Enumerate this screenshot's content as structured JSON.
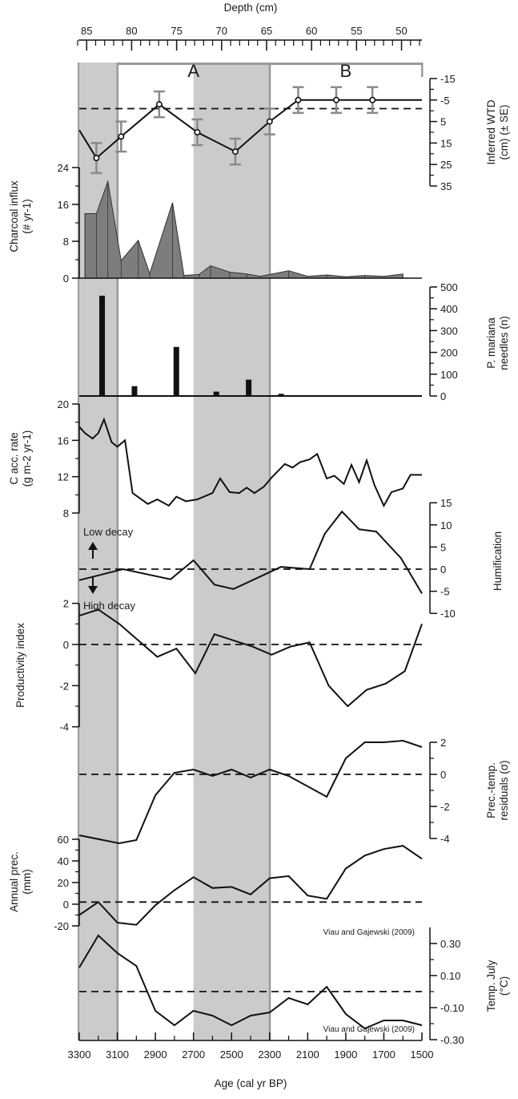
{
  "chart_data": {
    "type": "multi-panel stratigraphic line/bar chart",
    "top_axis": {
      "label": "Depth (cm)",
      "tick_labels": [
        "85",
        "80",
        "75",
        "70",
        "65",
        "60",
        "55",
        "50"
      ],
      "range": [
        86,
        48
      ]
    },
    "bottom_axis": {
      "label": "Age (cal yr BP)",
      "tick_labels": [
        "3300",
        "3100",
        "2900",
        "2700",
        "2500",
        "2300",
        "2100",
        "1900",
        "1700",
        "1500"
      ],
      "range": [
        3300,
        1500
      ]
    },
    "zones": [
      {
        "label": "A",
        "from_age": 3100,
        "to_age": 2300
      },
      {
        "label": "B",
        "from_age": 2300,
        "to_age": 1500
      }
    ],
    "shaded_intervals": [
      {
        "from_age": 3300,
        "to_age": 3100
      },
      {
        "from_age": 2700,
        "to_age": 2300
      }
    ],
    "panels": [
      {
        "id": "wtd",
        "ylabel": "Inferred WTD\n(cm) (± SE)",
        "tick_labels": [
          "-15",
          "-5",
          "5",
          "15",
          "25",
          "35"
        ],
        "ylim": [
          -15,
          35
        ],
        "inverted": true,
        "dashed_reference": -1,
        "x": [
          3300,
          3210,
          3080,
          2880,
          2680,
          2480,
          2300,
          2150,
          1950,
          1760,
          1500
        ],
        "y": [
          9,
          22,
          12,
          -3,
          10,
          19,
          5,
          -5,
          -5,
          -5,
          -5
        ],
        "errors": [
          null,
          7,
          7,
          6,
          6,
          6,
          6,
          6,
          6,
          6,
          null
        ]
      },
      {
        "id": "charcoal",
        "type": "area",
        "ylabel": "Charcoal influx\n(# yr-1)",
        "tick_labels": [
          "0",
          "8",
          "16",
          "24"
        ],
        "ylim": [
          0,
          24
        ],
        "x": [
          3270,
          3210,
          3150,
          3080,
          2990,
          2930,
          2810,
          2750,
          2670,
          2610,
          2510,
          2420,
          2350,
          2200,
          2100,
          2000,
          1900,
          1800,
          1700,
          1600
        ],
        "y": [
          14,
          14,
          21,
          3.8,
          8.2,
          1.0,
          16.4,
          0.6,
          0.8,
          2.7,
          1.3,
          0.9,
          0.4,
          1.6,
          0.4,
          0.7,
          0.3,
          0.6,
          0.4,
          0.9
        ]
      },
      {
        "id": "needles",
        "type": "bar",
        "ylabel": "P. mariana\nneedles (n)",
        "tick_labels": [
          "0",
          "100",
          "200",
          "300",
          "400",
          "500"
        ],
        "ylim": [
          0,
          500
        ],
        "x": [
          3180,
          3010,
          2790,
          2580,
          2410,
          2240
        ],
        "y": [
          460,
          45,
          225,
          20,
          75,
          10
        ]
      },
      {
        "id": "carbon",
        "ylabel": "C acc. rate\n(g m-2 yr-1)",
        "tick_labels": [
          "8",
          "12",
          "16",
          "20"
        ],
        "ylim": [
          8,
          20
        ],
        "x": [
          3300,
          3270,
          3230,
          3200,
          3170,
          3130,
          3100,
          3060,
          3020,
          2940,
          2890,
          2830,
          2790,
          2740,
          2680,
          2600,
          2560,
          2510,
          2460,
          2420,
          2380,
          2330,
          2290,
          2220,
          2180,
          2140,
          2090,
          2050,
          2000,
          1960,
          1910,
          1870,
          1830,
          1790,
          1750,
          1700,
          1660,
          1600,
          1560,
          1500
        ],
        "y": [
          17.5,
          16.8,
          16.2,
          16.8,
          18.3,
          15.8,
          15.3,
          16.0,
          10.2,
          9.0,
          9.5,
          8.8,
          9.8,
          9.3,
          9.5,
          10.2,
          11.8,
          10.3,
          10.2,
          10.8,
          10.2,
          10.9,
          11.9,
          13.4,
          13.0,
          13.6,
          13.9,
          14.5,
          11.8,
          12.1,
          11.2,
          13.3,
          11.4,
          13.8,
          11.1,
          8.8,
          10.3,
          10.7,
          12.2,
          12.2
        ]
      },
      {
        "id": "humification",
        "ylabel": "Humification",
        "tick_labels": [
          "-10",
          "-5",
          "0",
          "5",
          "10",
          "15"
        ],
        "ylim": [
          -10,
          15
        ],
        "dashed_reference": 0,
        "x": [
          3300,
          3070,
          2820,
          2700,
          2590,
          2490,
          2240,
          2090,
          2010,
          1920,
          1830,
          1740,
          1610,
          1500
        ],
        "y": [
          -2.5,
          0,
          -2.3,
          2.0,
          -3.5,
          -4.5,
          0.5,
          0,
          8.0,
          13.0,
          9.0,
          8.5,
          2.5,
          -5.5
        ],
        "annotations": [
          "Low decay",
          "High decay"
        ]
      },
      {
        "id": "productivity",
        "ylabel": "Productivity index",
        "tick_labels": [
          "-4",
          "-2",
          "0",
          "2"
        ],
        "ylim": [
          -4,
          2
        ],
        "dashed_reference": 0,
        "x": [
          3300,
          3200,
          3090,
          2990,
          2890,
          2790,
          2690,
          2590,
          2490,
          2390,
          2290,
          2190,
          2090,
          1990,
          1890,
          1790,
          1690,
          1590,
          1500
        ],
        "y": [
          1.4,
          1.7,
          1.0,
          0.2,
          -0.6,
          -0.2,
          -1.4,
          0.5,
          0.2,
          -0.1,
          -0.5,
          -0.1,
          0.1,
          -2.0,
          -3.0,
          -2.2,
          -1.9,
          -1.3,
          1.0
        ]
      },
      {
        "id": "residuals",
        "ylabel": "Prec.-temp.\nresiduals (σ)",
        "tick_labels": [
          "-4",
          "-2",
          "0",
          "2"
        ],
        "ylim": [
          -4,
          2
        ],
        "dashed_reference": 0,
        "x": [
          3300,
          3090,
          3000,
          2900,
          2800,
          2700,
          2600,
          2500,
          2400,
          2300,
          2200,
          2000,
          1900,
          1800,
          1700,
          1600,
          1500
        ],
        "y": [
          -3.8,
          -4.3,
          -4.1,
          -1.3,
          0.1,
          0.3,
          -0.1,
          0.3,
          -0.2,
          0.3,
          -0.1,
          -1.4,
          1.0,
          2.0,
          2.0,
          2.1,
          1.7
        ]
      },
      {
        "id": "precip",
        "ylabel": "Annual prec.\n(mm)",
        "tick_labels": [
          "-20",
          "0",
          "20",
          "40",
          "60"
        ],
        "ylim": [
          -20,
          60
        ],
        "dashed_reference": 2,
        "x": [
          3300,
          3200,
          3100,
          3000,
          2900,
          2800,
          2700,
          2600,
          2500,
          2400,
          2300,
          2200,
          2100,
          2000,
          1900,
          1800,
          1700,
          1600,
          1500
        ],
        "y": [
          -10,
          2,
          -17,
          -19,
          -1,
          13,
          25,
          15,
          16,
          9,
          24,
          26,
          8,
          5,
          33,
          45,
          51,
          54,
          42
        ],
        "source": "Viau and Gajewski (2009)"
      },
      {
        "id": "temp",
        "ylabel": "Temp. July\n(°C)",
        "tick_labels": [
          "-0.30",
          "-0.10",
          "0.10",
          "0.30"
        ],
        "ylim": [
          -0.3,
          0.4
        ],
        "dashed_reference": 0,
        "x": [
          3300,
          3200,
          3100,
          3000,
          2900,
          2800,
          2700,
          2600,
          2500,
          2400,
          2300,
          2200,
          2100,
          2000,
          1900,
          1800,
          1700,
          1600,
          1500
        ],
        "y": [
          0.15,
          0.35,
          0.24,
          0.16,
          -0.12,
          -0.21,
          -0.12,
          -0.15,
          -0.21,
          -0.15,
          -0.13,
          -0.04,
          -0.08,
          0.03,
          -0.14,
          -0.23,
          -0.18,
          -0.18,
          -0.21
        ],
        "source": "Viau and Gajewski (2009)"
      }
    ]
  }
}
